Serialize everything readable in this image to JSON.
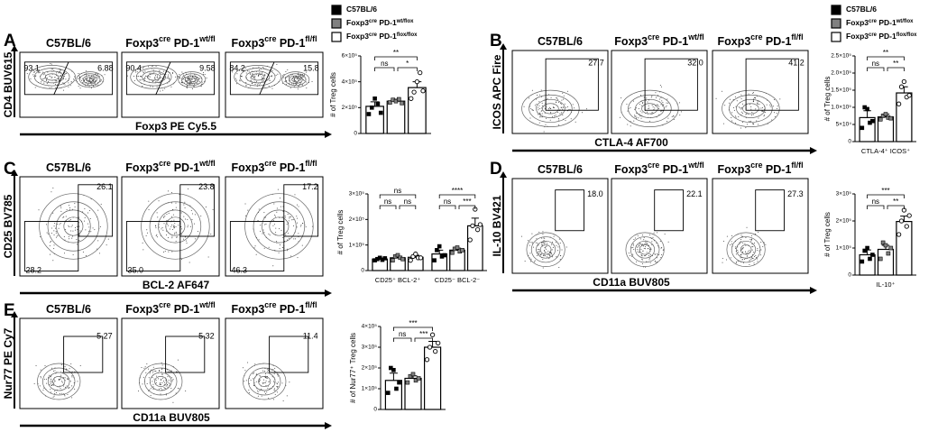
{
  "group_colors": [
    "#000000",
    "#808080",
    "#ffffff"
  ],
  "legends": [
    [
      [
        [
          "C57BL/6"
        ]
      ],
      [
        [
          "Foxp3",
          "cre"
        ],
        [
          " PD-1",
          "wt/flox"
        ]
      ],
      [
        [
          "Foxp3",
          "cre"
        ],
        [
          " PD-1",
          "flox/flox"
        ]
      ]
    ],
    [
      [
        [
          "C57BL/6"
        ]
      ],
      [
        [
          "Foxp3",
          "cre"
        ],
        [
          " PD-1",
          "wt/flox"
        ]
      ],
      [
        [
          "Foxp3",
          "cre"
        ],
        [
          " PD-1",
          "flox/flox"
        ]
      ]
    ]
  ],
  "panels": [
    {
      "letter": "A",
      "titles": [
        [
          [
            "C57BL/6"
          ]
        ],
        [
          [
            "Foxp3",
            "cre"
          ],
          [
            " PD-1",
            "wt/fl"
          ]
        ],
        [
          [
            "Foxp3",
            "cre"
          ],
          [
            " PD-1",
            "fl/fl"
          ]
        ]
      ],
      "gates": [
        [
          "93.1",
          "6.88"
        ],
        [
          "90.4",
          "9.58"
        ],
        [
          "84.2",
          "15.8"
        ]
      ],
      "xlabel": "Foxp3 PE Cy5.5",
      "ylabel": "CD4 BUV615",
      "chart": {
        "ylabel": "# of Treg cells",
        "ylim": [
          0,
          600000
        ],
        "yticks": [
          0,
          {
            "value": 200000,
            "label": "2×10⁵"
          },
          {
            "value": 400000,
            "label": "4×10⁵"
          },
          {
            "value": 600000,
            "label": "6×10⁵"
          }
        ],
        "groups": [
          {
            "values": [
              210000,
              250000,
              355000
            ],
            "errors": [
              35000,
              15000,
              45000
            ],
            "points": [
              [
                150000,
                200000,
                270000,
                230000,
                160000
              ],
              [
                240000,
                260000,
                250000,
                265000,
                235000
              ],
              [
                270000,
                320000,
                400000,
                470000,
                330000
              ]
            ],
            "sig": [
              "ns",
              "*",
              "**"
            ]
          }
        ]
      }
    },
    {
      "letter": "B",
      "titles": [
        [
          [
            "C57BL/6"
          ]
        ],
        [
          [
            "Foxp3",
            "cre"
          ],
          [
            " PD-1",
            "wt/fl"
          ]
        ],
        [
          [
            "Foxp3",
            "cre"
          ],
          [
            " PD-1",
            "fl/fl"
          ]
        ]
      ],
      "gates": [
        [
          "27.7"
        ],
        [
          "32.0"
        ],
        [
          "41.2"
        ]
      ],
      "xlabel": "CTLA-4 AF700",
      "ylabel": "ICOS APC Fire",
      "chart": {
        "ylabel": "# of Treg cells",
        "ylim": [
          0,
          250000
        ],
        "yticks": [
          0,
          {
            "value": 50000,
            "label": "5×10⁴"
          },
          {
            "value": 100000,
            "label": "1.0×10⁵"
          },
          {
            "value": 150000,
            "label": "1.5×10⁵"
          },
          {
            "value": 200000,
            "label": "2.0×10⁵"
          },
          {
            "value": 250000,
            "label": "2.5×10⁵"
          }
        ],
        "groups": [
          {
            "category": "CTLA-4⁺ ICOS⁺",
            "values": [
              70000,
              72000,
              142000
            ],
            "errors": [
              20000,
              8000,
              18000
            ],
            "points": [
              [
                40000,
                100000,
                95000,
                55000,
                60000
              ],
              [
                65000,
                75000,
                80000,
                70000,
                68000
              ],
              [
                110000,
                160000,
                175000,
                130000,
                135000
              ]
            ],
            "sig": [
              "ns",
              "**",
              "**"
            ]
          }
        ]
      }
    },
    {
      "letter": "C",
      "titles": [
        [
          [
            "C57BL/6"
          ]
        ],
        [
          [
            "Foxp3",
            "cre"
          ],
          [
            " PD-1",
            "wt/fl"
          ]
        ],
        [
          [
            "Foxp3",
            "cre"
          ],
          [
            " PD-1",
            "fl/fl"
          ]
        ]
      ],
      "gates": [
        [
          "26.1",
          "28.2"
        ],
        [
          "23.8",
          "35.0"
        ],
        [
          "17.2",
          "46.3"
        ]
      ],
      "xlabel": "BCL-2 AF647",
      "ylabel": "CD25 BV785",
      "chart": {
        "ylabel": "# of Treg cells",
        "ylim": [
          0,
          300000
        ],
        "yticks": [
          0,
          {
            "value": 100000,
            "label": "1×10⁵"
          },
          {
            "value": 200000,
            "label": "2×10⁵"
          },
          {
            "value": 300000,
            "label": "3×10⁵"
          }
        ],
        "groups": [
          {
            "category": "CD25⁺ BCL-2⁺",
            "values": [
              45000,
              50000,
              52000
            ],
            "errors": [
              4000,
              6000,
              8000
            ],
            "points": [
              [
                40000,
                45000,
                50000,
                42000,
                48000
              ],
              [
                40000,
                55000,
                60000,
                50000,
                45000
              ],
              [
                40000,
                55000,
                65000,
                50000,
                50000
              ]
            ],
            "sig": [
              "ns",
              "ns",
              "ns"
            ]
          },
          {
            "category": "CD25⁻ BCL-2⁻",
            "values": [
              65000,
              80000,
              175000
            ],
            "errors": [
              15000,
              8000,
              30000
            ],
            "points": [
              [
                40000,
                80000,
                95000,
                55000,
                60000
              ],
              [
                70000,
                85000,
                90000,
                75000,
                80000
              ],
              [
                120000,
                175000,
                240000,
                160000,
                180000
              ]
            ],
            "sig": [
              "ns",
              "***",
              "****"
            ]
          }
        ]
      }
    },
    {
      "letter": "D",
      "titles": [
        [
          [
            "C57BL/6"
          ]
        ],
        [
          [
            "Foxp3",
            "cre"
          ],
          [
            " PD-1",
            "wt/fl"
          ]
        ],
        [
          [
            "Foxp3",
            "cre"
          ],
          [
            " PD-1",
            "fl/fl"
          ]
        ]
      ],
      "gates": [
        [
          "18.0"
        ],
        [
          "22.1"
        ],
        [
          "27.3"
        ]
      ],
      "xlabel": "CD11a BUV805",
      "ylabel": "IL-10 BV421",
      "chart": {
        "ylabel": "# of Treg cells",
        "ylim": [
          0,
          300000
        ],
        "yticks": [
          0,
          {
            "value": 100000,
            "label": "1×10⁵"
          },
          {
            "value": 200000,
            "label": "2×10⁵"
          },
          {
            "value": 300000,
            "label": "3×10⁵"
          }
        ],
        "groups": [
          {
            "category": "IL-10⁺",
            "values": [
              75000,
              95000,
              198000
            ],
            "errors": [
              18000,
              15000,
              20000
            ],
            "points": [
              [
                50000,
                90000,
                100000,
                60000,
                75000
              ],
              [
                60000,
                120000,
                110000,
                80000,
                100000
              ],
              [
                150000,
                200000,
                240000,
                180000,
                220000
              ]
            ],
            "sig": [
              "ns",
              "**",
              "***"
            ]
          }
        ]
      }
    },
    {
      "letter": "E",
      "titles": [
        [
          [
            "C57BL/6"
          ]
        ],
        [
          [
            "Foxp3",
            "cre"
          ],
          [
            " PD-1",
            "wt/fl"
          ]
        ],
        [
          [
            "Foxp3",
            "cre"
          ],
          [
            " PD-1",
            "fl/fl"
          ]
        ]
      ],
      "gates": [
        [
          "5.27"
        ],
        [
          "5.32"
        ],
        [
          "11.4"
        ]
      ],
      "xlabel": "CD11a BUV805",
      "ylabel": "Nur77 PE Cy7",
      "chart": {
        "ylabel": "# of Nur77⁺ Treg cells",
        "ylim": [
          0,
          400000
        ],
        "yticks": [
          0,
          {
            "value": 100000,
            "label": "1×10⁵"
          },
          {
            "value": 200000,
            "label": "2×10⁵"
          },
          {
            "value": 300000,
            "label": "3×10⁵"
          },
          {
            "value": 400000,
            "label": "4×10⁵"
          }
        ],
        "groups": [
          {
            "values": [
              140000,
              150000,
              300000
            ],
            "errors": [
              35000,
              12000,
              28000
            ],
            "points": [
              [
                80000,
                200000,
                190000,
                100000,
                130000
              ],
              [
                130000,
                160000,
                170000,
                140000,
                150000
              ],
              [
                240000,
                300000,
                360000,
                280000,
                320000
              ]
            ],
            "sig": [
              "ns",
              "***",
              "***"
            ]
          }
        ]
      }
    }
  ]
}
